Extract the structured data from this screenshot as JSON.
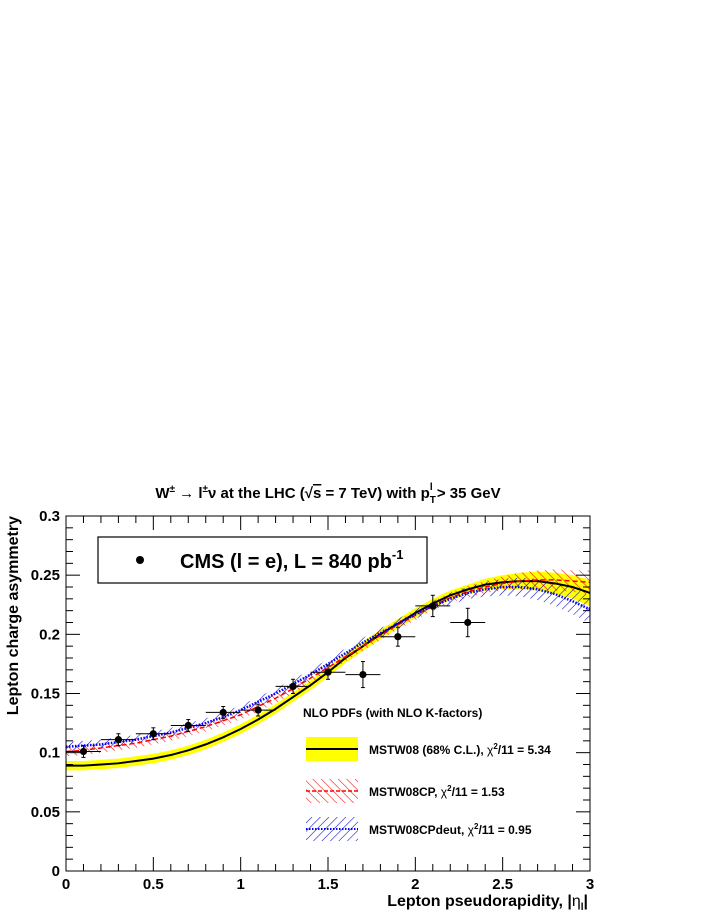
{
  "chart_data": {
    "type": "scatter",
    "title": {
      "lead": "W",
      "sup1": "±",
      "arrow": " → l",
      "sup2": "±",
      "nu": "ν",
      "mid": " at the LHC (",
      "sqrt": "√",
      "s": "s",
      "energy": " = 7 TeV) with p",
      "sub_t": "T",
      "sup_l": "l",
      "tail": " > 35 GeV"
    },
    "xlabel": "Lepton pseudorapidity, |",
    "xlabel_eta": "η",
    "xlabel_sub": "l",
    "xlabel_end": "|",
    "ylabel": "Lepton charge asymmetry",
    "xlim": [
      0,
      3
    ],
    "ylim": [
      0,
      0.3
    ],
    "x_ticks": [
      "0",
      "0.5",
      "1",
      "1.5",
      "2",
      "2.5",
      "3"
    ],
    "y_ticks": [
      "0",
      "0.05",
      "0.1",
      "0.15",
      "0.2",
      "0.25",
      "0.3"
    ],
    "data_legend": {
      "main": "CMS (l = e), L = 840 pb",
      "sup": "-1"
    },
    "data_points": {
      "x": [
        0.1,
        0.3,
        0.5,
        0.7,
        0.9,
        1.1,
        1.3,
        1.5,
        1.7,
        1.9,
        2.1,
        2.3
      ],
      "y": [
        0.101,
        0.111,
        0.116,
        0.123,
        0.134,
        0.136,
        0.156,
        0.168,
        0.166,
        0.198,
        0.224,
        0.21
      ],
      "x_err": [
        0.1,
        0.1,
        0.1,
        0.1,
        0.1,
        0.1,
        0.1,
        0.1,
        0.1,
        0.1,
        0.1,
        0.1
      ],
      "y_err": [
        0.005,
        0.005,
        0.005,
        0.005,
        0.005,
        0.005,
        0.006,
        0.006,
        0.011,
        0.008,
        0.009,
        0.012
      ]
    },
    "theory_header": "NLO PDFs (with NLO K-factors)",
    "series": [
      {
        "name": "MSTW08 (68% C.L.), ",
        "chi_sym": "χ",
        "chi_sup": "2",
        "chi_val": "/11 = 5.34",
        "color": "#000000",
        "band_color": "#ffff00",
        "x": [
          0,
          0.1,
          0.2,
          0.3,
          0.4,
          0.5,
          0.6,
          0.7,
          0.8,
          0.9,
          1.0,
          1.1,
          1.2,
          1.3,
          1.4,
          1.5,
          1.6,
          1.7,
          1.8,
          1.9,
          2.0,
          2.1,
          2.2,
          2.3,
          2.4,
          2.5,
          2.6,
          2.7,
          2.8,
          2.9,
          3.0
        ],
        "values": [
          0.089,
          0.089,
          0.09,
          0.091,
          0.093,
          0.095,
          0.098,
          0.102,
          0.107,
          0.113,
          0.12,
          0.128,
          0.137,
          0.147,
          0.157,
          0.168,
          0.18,
          0.19,
          0.2,
          0.209,
          0.218,
          0.226,
          0.233,
          0.238,
          0.242,
          0.244,
          0.245,
          0.245,
          0.243,
          0.24,
          0.235
        ],
        "band_halfwidth": [
          0.004,
          0.004,
          0.004,
          0.004,
          0.004,
          0.004,
          0.004,
          0.004,
          0.004,
          0.004,
          0.004,
          0.004,
          0.004,
          0.004,
          0.004,
          0.004,
          0.004,
          0.004,
          0.004,
          0.004,
          0.004,
          0.004,
          0.004,
          0.004,
          0.005,
          0.006,
          0.007,
          0.008,
          0.009,
          0.01,
          0.011
        ]
      },
      {
        "name": "MSTW08CP, ",
        "chi_sym": "χ",
        "chi_sup": "2",
        "chi_val": "/11 = 1.53",
        "color": "#ff0000",
        "band_color": "#ff0000",
        "x": [
          0,
          0.1,
          0.2,
          0.3,
          0.4,
          0.5,
          0.6,
          0.7,
          0.8,
          0.9,
          1.0,
          1.1,
          1.2,
          1.3,
          1.4,
          1.5,
          1.6,
          1.7,
          1.8,
          1.9,
          2.0,
          2.1,
          2.2,
          2.3,
          2.4,
          2.5,
          2.6,
          2.7,
          2.8,
          2.9,
          3.0
        ],
        "values": [
          0.101,
          0.102,
          0.104,
          0.106,
          0.108,
          0.111,
          0.114,
          0.118,
          0.122,
          0.127,
          0.132,
          0.139,
          0.146,
          0.154,
          0.163,
          0.172,
          0.181,
          0.19,
          0.199,
          0.208,
          0.216,
          0.224,
          0.231,
          0.236,
          0.24,
          0.243,
          0.245,
          0.246,
          0.246,
          0.245,
          0.244
        ],
        "band_halfwidth": [
          0.004,
          0.004,
          0.004,
          0.004,
          0.004,
          0.004,
          0.004,
          0.004,
          0.004,
          0.004,
          0.004,
          0.004,
          0.004,
          0.004,
          0.004,
          0.004,
          0.004,
          0.004,
          0.004,
          0.004,
          0.004,
          0.004,
          0.004,
          0.005,
          0.005,
          0.006,
          0.007,
          0.008,
          0.009,
          0.009,
          0.01
        ]
      },
      {
        "name": "MSTW08CPdeut, ",
        "chi_sym": "χ",
        "chi_sup": "2",
        "chi_val": "/11 = 0.95",
        "color": "#0000ff",
        "band_color": "#0000cc",
        "x": [
          0,
          0.1,
          0.2,
          0.3,
          0.4,
          0.5,
          0.6,
          0.7,
          0.8,
          0.9,
          1.0,
          1.1,
          1.2,
          1.3,
          1.4,
          1.5,
          1.6,
          1.7,
          1.8,
          1.9,
          2.0,
          2.1,
          2.2,
          2.3,
          2.4,
          2.5,
          2.6,
          2.7,
          2.8,
          2.9,
          3.0
        ],
        "values": [
          0.105,
          0.106,
          0.107,
          0.109,
          0.111,
          0.114,
          0.117,
          0.121,
          0.125,
          0.13,
          0.136,
          0.143,
          0.15,
          0.158,
          0.166,
          0.175,
          0.184,
          0.193,
          0.201,
          0.209,
          0.217,
          0.224,
          0.23,
          0.235,
          0.238,
          0.24,
          0.24,
          0.238,
          0.234,
          0.228,
          0.221
        ],
        "band_halfwidth": [
          0.004,
          0.004,
          0.004,
          0.004,
          0.004,
          0.004,
          0.004,
          0.004,
          0.004,
          0.004,
          0.004,
          0.004,
          0.004,
          0.004,
          0.004,
          0.004,
          0.004,
          0.004,
          0.004,
          0.004,
          0.004,
          0.004,
          0.005,
          0.005,
          0.006,
          0.007,
          0.008,
          0.009,
          0.01,
          0.011,
          0.012
        ]
      }
    ]
  }
}
